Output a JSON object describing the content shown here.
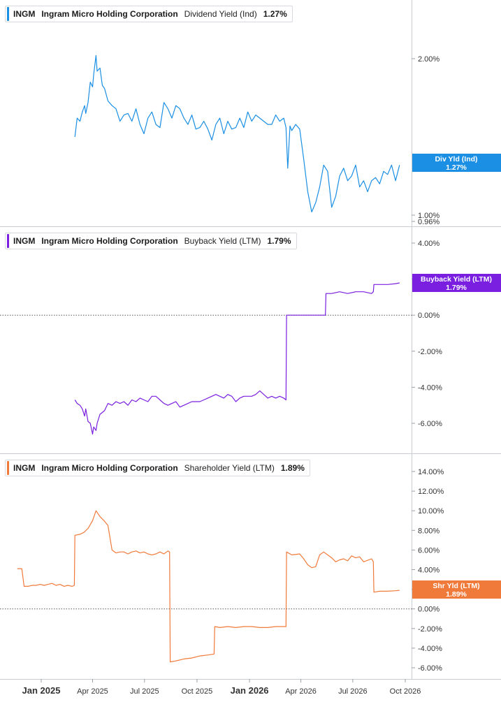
{
  "ticker": "INGM",
  "company": "Ingram Micro Holding Corporation",
  "x_axis_labels": [
    {
      "label": "Jan 2025",
      "date": "2025-01-01",
      "bold": true
    },
    {
      "label": "Apr 2025",
      "date": "2025-04-01",
      "bold": false
    },
    {
      "label": "Jul 2025",
      "date": "2025-07-01",
      "bold": false
    },
    {
      "label": "Oct 2025",
      "date": "2025-10-01",
      "bold": false
    },
    {
      "label": "Jan 2026",
      "date": "2026-01-01",
      "bold": true
    },
    {
      "label": "Apr 2026",
      "date": "2026-04-01",
      "bold": false
    },
    {
      "label": "Jul 2026",
      "date": "2026-07-01",
      "bold": false
    },
    {
      "label": "Oct 2026",
      "date": "2026-10-01",
      "bold": false
    }
  ],
  "panels": [
    {
      "metric": "Dividend Yield (Ind)",
      "value_label": "1.27%",
      "badge_line1": "Div Yld (Ind)",
      "badge_line2": "1.27%"
    },
    {
      "metric": "Buyback Yield (LTM)",
      "value_label": "1.79%",
      "badge_line1": "Buyback Yield (LTM)",
      "badge_line2": "1.79%"
    },
    {
      "metric": "Shareholder Yield (LTM)",
      "value_label": "1.89%",
      "badge_line1": "Shr Yld (LTM)",
      "badge_line2": "1.89%"
    }
  ],
  "chart_data": [
    {
      "type": "line",
      "title": "INGM Ingram Micro Holding Corporation Dividend Yield (Ind) 1.27%",
      "color": "#1a8fe3",
      "ylim": [
        0.96,
        2.5
      ],
      "y_ticks": [
        {
          "v": 2.0,
          "label": "2.00%"
        },
        {
          "v": 1.0,
          "label": "1.00%"
        },
        {
          "v": 0.96,
          "label": "0.96%"
        }
      ],
      "zero_line": false,
      "x": [
        "2025-03-01",
        "2025-03-05",
        "2025-03-10",
        "2025-03-14",
        "2025-03-18",
        "2025-03-20",
        "2025-03-24",
        "2025-03-28",
        "2025-04-01",
        "2025-04-03",
        "2025-04-07",
        "2025-04-09",
        "2025-04-14",
        "2025-04-18",
        "2025-04-22",
        "2025-04-28",
        "2025-05-05",
        "2025-05-12",
        "2025-05-19",
        "2025-05-26",
        "2025-06-02",
        "2025-06-09",
        "2025-06-16",
        "2025-06-23",
        "2025-06-30",
        "2025-07-07",
        "2025-07-14",
        "2025-07-21",
        "2025-07-28",
        "2025-08-04",
        "2025-08-11",
        "2025-08-18",
        "2025-08-25",
        "2025-09-01",
        "2025-09-08",
        "2025-09-15",
        "2025-09-22",
        "2025-09-29",
        "2025-10-06",
        "2025-10-13",
        "2025-10-20",
        "2025-10-27",
        "2025-11-03",
        "2025-11-10",
        "2025-11-17",
        "2025-11-24",
        "2025-12-01",
        "2025-12-08",
        "2025-12-15",
        "2025-12-22",
        "2025-12-29",
        "2026-01-05",
        "2026-01-12",
        "2026-01-19",
        "2026-01-26",
        "2026-02-02",
        "2026-02-09",
        "2026-02-16",
        "2026-02-23",
        "2026-03-02",
        "2026-03-06",
        "2026-03-09",
        "2026-03-13",
        "2026-03-16",
        "2026-03-23",
        "2026-03-30",
        "2026-04-06",
        "2026-04-13",
        "2026-04-20",
        "2026-04-27",
        "2026-05-04",
        "2026-05-11",
        "2026-05-18",
        "2026-05-25",
        "2026-06-01",
        "2026-06-08",
        "2026-06-15",
        "2026-06-22",
        "2026-06-29",
        "2026-07-06",
        "2026-07-13",
        "2026-07-20",
        "2026-07-27",
        "2026-08-03",
        "2026-08-10",
        "2026-08-17",
        "2026-08-24",
        "2026-08-31",
        "2026-09-07",
        "2026-09-14",
        "2026-09-21"
      ],
      "y": [
        1.5,
        1.62,
        1.6,
        1.66,
        1.7,
        1.65,
        1.72,
        1.85,
        1.82,
        1.9,
        2.02,
        1.92,
        1.94,
        1.83,
        1.81,
        1.73,
        1.7,
        1.68,
        1.6,
        1.64,
        1.65,
        1.6,
        1.68,
        1.58,
        1.52,
        1.62,
        1.66,
        1.58,
        1.56,
        1.72,
        1.68,
        1.62,
        1.7,
        1.68,
        1.62,
        1.58,
        1.64,
        1.55,
        1.56,
        1.6,
        1.55,
        1.48,
        1.58,
        1.62,
        1.52,
        1.6,
        1.55,
        1.56,
        1.62,
        1.56,
        1.66,
        1.6,
        1.64,
        1.62,
        1.6,
        1.58,
        1.58,
        1.64,
        1.6,
        1.62,
        1.56,
        1.3,
        1.57,
        1.54,
        1.58,
        1.55,
        1.36,
        1.15,
        1.02,
        1.08,
        1.18,
        1.32,
        1.28,
        1.05,
        1.12,
        1.25,
        1.3,
        1.22,
        1.25,
        1.32,
        1.18,
        1.22,
        1.15,
        1.22,
        1.24,
        1.2,
        1.28,
        1.26,
        1.32,
        1.22,
        1.32
      ]
    },
    {
      "type": "line",
      "title": "INGM Ingram Micro Holding Corporation Buyback Yield (LTM) 1.79%",
      "color": "#7a1fe0",
      "ylim": [
        -7.0,
        4.5
      ],
      "y_ticks": [
        {
          "v": 4,
          "label": "4.00%"
        },
        {
          "v": 2,
          "label": "2.00%"
        },
        {
          "v": 0,
          "label": "0.00%"
        },
        {
          "v": -2,
          "label": "-2.00%"
        },
        {
          "v": -4,
          "label": "-4.00%"
        },
        {
          "v": -6,
          "label": "-6.00%"
        }
      ],
      "zero_line": true,
      "x": [
        "2025-03-01",
        "2025-03-05",
        "2025-03-10",
        "2025-03-14",
        "2025-03-18",
        "2025-03-20",
        "2025-03-24",
        "2025-03-28",
        "2025-04-01",
        "2025-04-03",
        "2025-04-07",
        "2025-04-09",
        "2025-04-14",
        "2025-04-18",
        "2025-04-22",
        "2025-04-28",
        "2025-05-05",
        "2025-05-12",
        "2025-05-19",
        "2025-05-26",
        "2025-06-02",
        "2025-06-09",
        "2025-06-16",
        "2025-06-23",
        "2025-06-30",
        "2025-07-07",
        "2025-07-14",
        "2025-07-21",
        "2025-07-28",
        "2025-08-04",
        "2025-08-11",
        "2025-08-18",
        "2025-08-25",
        "2025-09-01",
        "2025-09-08",
        "2025-09-15",
        "2025-09-22",
        "2025-09-29",
        "2025-10-06",
        "2025-10-13",
        "2025-10-20",
        "2025-10-27",
        "2025-11-03",
        "2025-11-10",
        "2025-11-17",
        "2025-11-24",
        "2025-12-01",
        "2025-12-08",
        "2025-12-15",
        "2025-12-22",
        "2025-12-29",
        "2026-01-05",
        "2026-01-12",
        "2026-01-19",
        "2026-01-26",
        "2026-02-02",
        "2026-02-09",
        "2026-02-16",
        "2026-02-23",
        "2026-03-02",
        "2026-03-06",
        "2026-03-07",
        "2026-03-16",
        "2026-03-30",
        "2026-04-13",
        "2026-04-27",
        "2026-05-11",
        "2026-05-14",
        "2026-05-15",
        "2026-05-25",
        "2026-06-08",
        "2026-06-22",
        "2026-07-06",
        "2026-07-20",
        "2026-08-03",
        "2026-08-06",
        "2026-08-07",
        "2026-08-17",
        "2026-08-31",
        "2026-09-14",
        "2026-09-21"
      ],
      "y": [
        -4.7,
        -4.9,
        -5.0,
        -5.2,
        -5.6,
        -5.2,
        -5.9,
        -6.0,
        -6.6,
        -6.2,
        -6.4,
        -6.0,
        -5.5,
        -5.4,
        -5.3,
        -4.9,
        -5.0,
        -4.8,
        -4.9,
        -4.8,
        -5.0,
        -4.7,
        -4.8,
        -4.6,
        -4.7,
        -4.8,
        -4.5,
        -4.5,
        -4.7,
        -4.9,
        -5.0,
        -4.9,
        -4.8,
        -5.1,
        -5.0,
        -4.9,
        -4.8,
        -4.8,
        -4.8,
        -4.7,
        -4.6,
        -4.5,
        -4.4,
        -4.5,
        -4.6,
        -4.4,
        -4.5,
        -4.8,
        -4.6,
        -4.5,
        -4.5,
        -4.5,
        -4.4,
        -4.2,
        -4.4,
        -4.6,
        -4.5,
        -4.6,
        -4.5,
        -4.6,
        -4.7,
        0.0,
        0.0,
        0.0,
        0.0,
        0.0,
        0.0,
        0.0,
        1.2,
        1.2,
        1.3,
        1.2,
        1.3,
        1.3,
        1.2,
        1.3,
        1.7,
        1.7,
        1.7,
        1.75,
        1.79
      ]
    },
    {
      "type": "line",
      "title": "INGM Ingram Micro Holding Corporation Shareholder Yield (LTM) 1.89%",
      "color": "#f07a3a",
      "ylim": [
        -7.0,
        15.0
      ],
      "y_ticks": [
        {
          "v": 14,
          "label": "14.00%"
        },
        {
          "v": 12,
          "label": "12.00%"
        },
        {
          "v": 10,
          "label": "10.00%"
        },
        {
          "v": 8,
          "label": "8.00%"
        },
        {
          "v": 6,
          "label": "6.00%"
        },
        {
          "v": 4,
          "label": "4.00%"
        },
        {
          "v": 2,
          "label": "2.00%"
        },
        {
          "v": 0,
          "label": "0.00%"
        },
        {
          "v": -2,
          "label": "-2.00%"
        },
        {
          "v": -4,
          "label": "-4.00%"
        },
        {
          "v": -6,
          "label": "-6.00%"
        }
      ],
      "zero_line": true,
      "x": [
        "2024-11-20",
        "2024-11-28",
        "2024-12-02",
        "2024-12-09",
        "2024-12-16",
        "2024-12-23",
        "2024-12-30",
        "2025-01-06",
        "2025-01-13",
        "2025-01-20",
        "2025-01-27",
        "2025-02-03",
        "2025-02-10",
        "2025-02-17",
        "2025-02-24",
        "2025-02-28",
        "2025-03-01",
        "2025-03-10",
        "2025-03-17",
        "2025-03-24",
        "2025-04-01",
        "2025-04-07",
        "2025-04-14",
        "2025-04-21",
        "2025-04-28",
        "2025-05-05",
        "2025-05-12",
        "2025-05-19",
        "2025-05-26",
        "2025-06-02",
        "2025-06-09",
        "2025-06-16",
        "2025-06-23",
        "2025-06-30",
        "2025-07-07",
        "2025-07-14",
        "2025-07-21",
        "2025-07-28",
        "2025-08-04",
        "2025-08-11",
        "2025-08-14",
        "2025-08-15",
        "2025-08-25",
        "2025-09-08",
        "2025-09-22",
        "2025-10-06",
        "2025-10-20",
        "2025-10-31",
        "2025-11-01",
        "2025-11-10",
        "2025-11-24",
        "2025-12-08",
        "2025-12-22",
        "2026-01-05",
        "2026-01-19",
        "2026-02-02",
        "2026-02-16",
        "2026-03-02",
        "2026-03-06",
        "2026-03-07",
        "2026-03-16",
        "2026-03-30",
        "2026-04-06",
        "2026-04-13",
        "2026-04-20",
        "2026-04-27",
        "2026-05-04",
        "2026-05-11",
        "2026-05-18",
        "2026-05-25",
        "2026-06-01",
        "2026-06-08",
        "2026-06-15",
        "2026-06-22",
        "2026-06-29",
        "2026-07-06",
        "2026-07-13",
        "2026-07-20",
        "2026-08-03",
        "2026-08-06",
        "2026-08-07",
        "2026-08-17",
        "2026-08-31",
        "2026-09-14",
        "2026-09-21"
      ],
      "y": [
        4.1,
        4.1,
        2.3,
        2.3,
        2.4,
        2.4,
        2.5,
        2.4,
        2.5,
        2.6,
        2.4,
        2.5,
        2.3,
        2.4,
        2.3,
        2.4,
        7.5,
        7.6,
        7.8,
        8.2,
        9.0,
        10.0,
        9.4,
        9.0,
        8.5,
        6.0,
        5.7,
        5.8,
        5.8,
        5.6,
        5.8,
        5.9,
        5.7,
        5.8,
        5.6,
        5.5,
        5.6,
        5.8,
        5.6,
        5.9,
        5.8,
        -5.4,
        -5.3,
        -5.1,
        -5.0,
        -4.8,
        -4.7,
        -4.6,
        -1.8,
        -1.9,
        -1.8,
        -1.9,
        -1.8,
        -1.8,
        -1.9,
        -1.9,
        -1.8,
        -1.8,
        -1.8,
        5.8,
        5.5,
        5.6,
        5.1,
        4.5,
        4.2,
        4.3,
        5.5,
        5.8,
        5.5,
        5.2,
        4.8,
        5.0,
        5.1,
        4.9,
        5.4,
        5.2,
        5.3,
        4.8,
        5.1,
        4.8,
        1.7,
        1.8,
        1.8,
        1.85,
        1.89
      ]
    }
  ]
}
